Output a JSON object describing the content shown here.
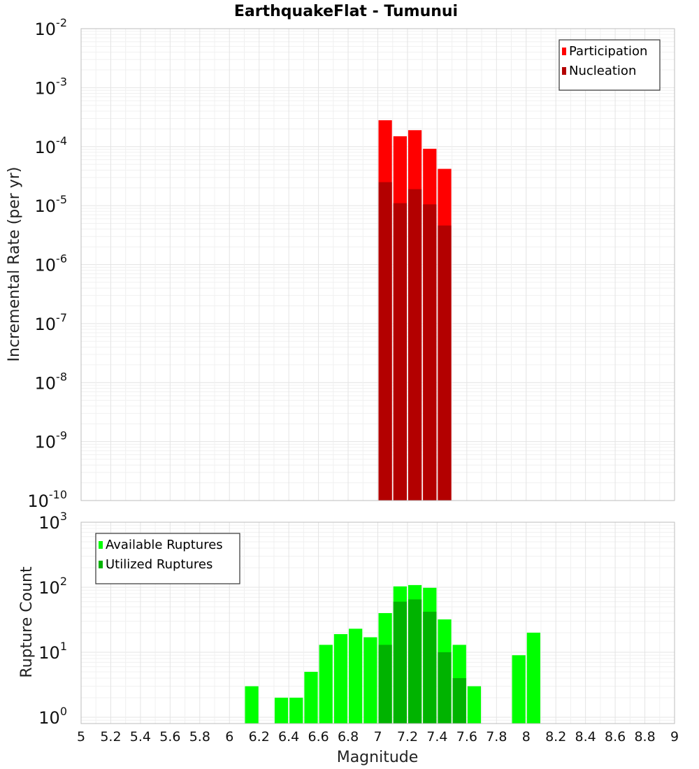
{
  "chart_data": [
    {
      "type": "bar",
      "title": "EarthquakeFlat - Tumunui",
      "ylabel": "Incremental Rate (per yr)",
      "xlim": [
        5,
        9
      ],
      "ylim": [
        1e-10,
        0.01
      ],
      "yscale": "log",
      "bin_width": 0.1,
      "y_tick_exponents": [
        -10,
        -9,
        -8,
        -7,
        -6,
        -5,
        -4,
        -3,
        -2
      ],
      "y_tick_base": "10",
      "legend": "top-right",
      "grid": true,
      "series": [
        {
          "name": "Participation",
          "color": "#ff0000",
          "x": [
            7.05,
            7.15,
            7.25,
            7.35,
            7.45
          ],
          "values": [
            0.00028,
            0.00015,
            0.00019,
            9.2e-05,
            4.2e-05
          ]
        },
        {
          "name": "Nucleation",
          "color": "#b30000",
          "x": [
            7.05,
            7.15,
            7.25,
            7.35,
            7.45
          ],
          "values": [
            2.5e-05,
            1.1e-05,
            1.9e-05,
            1.05e-05,
            4.6e-06
          ]
        }
      ]
    },
    {
      "type": "bar",
      "xlabel": "Magnitude",
      "ylabel": "Rupture Count",
      "xlim": [
        5,
        9
      ],
      "ylim": [
        0.8,
        1000
      ],
      "yscale": "log",
      "bin_width": 0.1,
      "y_tick_exponents": [
        0,
        1,
        2,
        3
      ],
      "y_tick_base": "10",
      "x_ticks": [
        "5",
        "5.2",
        "5.4",
        "5.6",
        "5.8",
        "6",
        "6.2",
        "6.4",
        "6.6",
        "6.8",
        "7",
        "7.2",
        "7.4",
        "7.6",
        "7.8",
        "8",
        "8.2",
        "8.4",
        "8.6",
        "8.8",
        "9"
      ],
      "legend": "top-left",
      "grid": true,
      "series": [
        {
          "name": "Available Ruptures",
          "color": "#00ff00",
          "x": [
            6.15,
            6.35,
            6.45,
            6.55,
            6.65,
            6.75,
            6.85,
            6.95,
            7.05,
            7.15,
            7.25,
            7.35,
            7.45,
            7.55,
            7.65,
            7.95,
            8.05
          ],
          "values": [
            3,
            2,
            2,
            5,
            13,
            19,
            23,
            17,
            40,
            103,
            108,
            98,
            32,
            13,
            3,
            9,
            20
          ]
        },
        {
          "name": "Utilized Ruptures",
          "color": "#00b300",
          "x": [
            7.05,
            7.15,
            7.25,
            7.35,
            7.45,
            7.55
          ],
          "values": [
            13,
            60,
            65,
            42,
            10,
            4
          ]
        }
      ]
    }
  ]
}
